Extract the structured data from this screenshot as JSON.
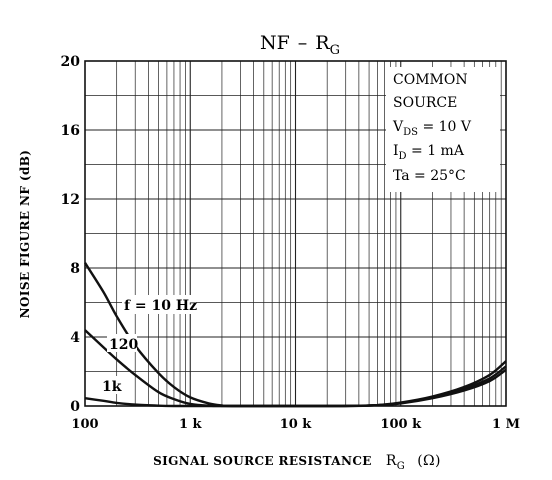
{
  "chart_data": {
    "type": "line",
    "title": "NF",
    "title_dash": "–",
    "title_r": "R",
    "title_r_sub": "G",
    "xlabel": "SIGNAL SOURCE RESISTANCE",
    "xlabel_symbol": "R",
    "xlabel_symbol_sub": "G",
    "xlabel_unit": "(Ω)",
    "ylabel": "NOISE FIGURE  NF  (dB)",
    "xscale": "log",
    "xlim": [
      100,
      1000000
    ],
    "ylim": [
      0,
      20
    ],
    "grid": true,
    "x_ticks": [
      {
        "value": 100,
        "label": "100"
      },
      {
        "value": 1000,
        "label": "1 k"
      },
      {
        "value": 10000,
        "label": "10 k"
      },
      {
        "value": 100000,
        "label": "100 k"
      },
      {
        "value": 1000000,
        "label": "1 M"
      }
    ],
    "y_ticks": [
      {
        "value": 0,
        "label": "0"
      },
      {
        "value": 4,
        "label": "4"
      },
      {
        "value": 8,
        "label": "8"
      },
      {
        "value": 12,
        "label": "12"
      },
      {
        "value": 16,
        "label": "16"
      },
      {
        "value": 20,
        "label": "20"
      }
    ],
    "annotation": {
      "lines": [
        "COMMON",
        "SOURCE"
      ],
      "vds_sym": "V",
      "vds_sub": "DS",
      "vds_val": " = 10 V",
      "id_sym": "I",
      "id_sub": "D",
      "id_val": " = 1 mA",
      "ta_line": "Ta = 25°C"
    },
    "series": [
      {
        "name": "f = 10 Hz",
        "x": [
          100,
          150,
          200,
          300,
          500,
          700,
          1000,
          1500,
          2000,
          2500,
          30000,
          60000,
          100000,
          200000,
          400000,
          700000,
          1000000
        ],
        "y": [
          8.3,
          6.6,
          5.2,
          3.5,
          1.9,
          1.1,
          0.5,
          0.15,
          0.03,
          0,
          0,
          0.05,
          0.2,
          0.55,
          1.1,
          1.8,
          2.6
        ]
      },
      {
        "name": "120",
        "x": [
          100,
          150,
          200,
          300,
          500,
          700,
          1000,
          1500,
          2500,
          30000,
          60000,
          100000,
          200000,
          400000,
          700000,
          1000000
        ],
        "y": [
          4.4,
          3.4,
          2.7,
          1.8,
          0.8,
          0.4,
          0.12,
          0.02,
          0,
          0,
          0.05,
          0.18,
          0.5,
          1.0,
          1.6,
          2.3
        ]
      },
      {
        "name": "1k",
        "x": [
          100,
          150,
          200,
          300,
          500,
          700,
          1000,
          20000,
          60000,
          100000,
          200000,
          400000,
          700000,
          1000000
        ],
        "y": [
          0.45,
          0.3,
          0.18,
          0.08,
          0.02,
          0,
          0,
          0,
          0.05,
          0.15,
          0.45,
          0.9,
          1.45,
          2.1
        ]
      }
    ],
    "curve_labels": {
      "f10": "f = 10 Hz",
      "f120": "120",
      "f1k": "1k"
    }
  }
}
